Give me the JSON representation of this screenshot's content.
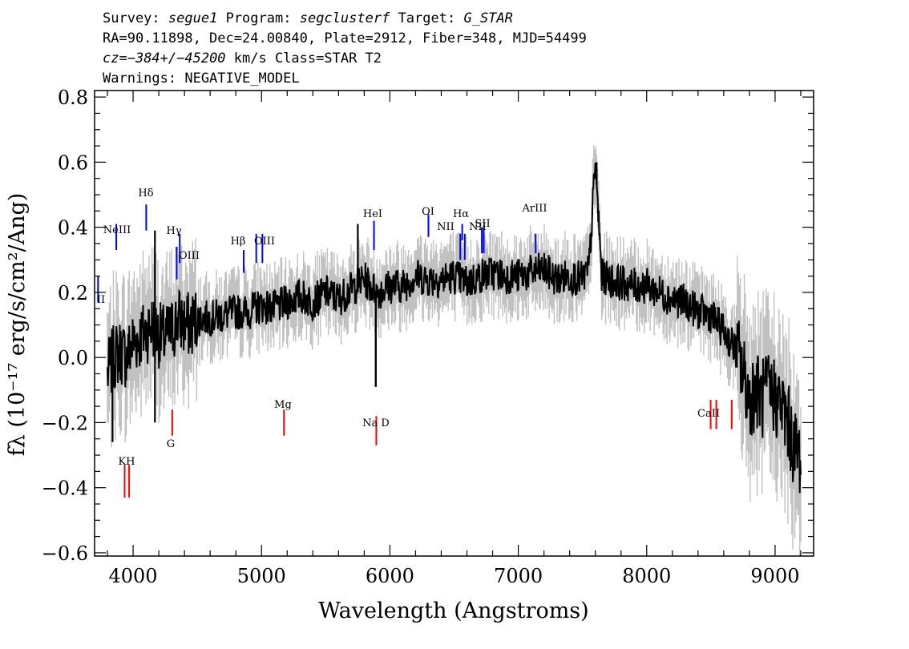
{
  "header": {
    "survey_label": "Survey:",
    "survey": "segue1",
    "program_label": "Program:",
    "program": "segclusterf",
    "target_label": "Target:",
    "target": "G_STAR",
    "line2": "RA=90.11898, Dec=24.00840, Plate=2912, Fiber=348, MJD=54499",
    "cz_label": "cz=",
    "cz_value": "−384+/−45200",
    "cz_units_class": " km/s Class=STAR T2",
    "warnings": "Warnings: NEGATIVE_MODEL"
  },
  "chart_data": {
    "type": "line",
    "xlabel": "Wavelength (Angstroms)",
    "ylabel": "fλ (10⁻¹⁷ erg/s/cm²/Ang)",
    "xlim": [
      3700,
      9300
    ],
    "ylim": [
      -0.61,
      0.82
    ],
    "x_ticks": [
      4000,
      5000,
      6000,
      7000,
      8000,
      9000
    ],
    "y_ticks": [
      -0.6,
      -0.4,
      -0.2,
      0.0,
      0.2,
      0.4,
      0.6,
      0.8
    ],
    "y_tick_labels": [
      "−0.6",
      "−0.4",
      "−0.2",
      "0.0",
      "0.2",
      "0.4",
      "0.6",
      "0.8"
    ],
    "colors": {
      "spectrum": "#000000",
      "errors": "#c0c0c0",
      "emission": "#0000ff",
      "absorption": "#ff0000"
    },
    "series": [
      {
        "role": "flux",
        "x": [
          3800,
          3850,
          3900,
          3950,
          4000,
          4050,
          4100,
          4150,
          4200,
          4250,
          4300,
          4350,
          4400,
          4450,
          4500,
          4600,
          4700,
          4800,
          4900,
          5000,
          5100,
          5200,
          5300,
          5400,
          5500,
          5600,
          5700,
          5800,
          5900,
          6000,
          6100,
          6200,
          6300,
          6400,
          6500,
          6600,
          6700,
          6800,
          6900,
          7000,
          7100,
          7200,
          7300,
          7400,
          7500,
          7550,
          7600,
          7650,
          7700,
          7800,
          7900,
          8000,
          8100,
          8200,
          8300,
          8400,
          8500,
          8600,
          8700,
          8750,
          8800,
          8850,
          8900,
          8950,
          9000,
          9050,
          9100,
          9150,
          9200
        ],
        "y": [
          -0.05,
          0.0,
          0.02,
          0.0,
          0.05,
          0.06,
          0.08,
          0.1,
          0.07,
          0.06,
          0.08,
          0.12,
          0.1,
          0.1,
          0.12,
          0.12,
          0.13,
          0.14,
          0.14,
          0.16,
          0.15,
          0.17,
          0.19,
          0.17,
          0.2,
          0.18,
          0.21,
          0.24,
          0.2,
          0.22,
          0.22,
          0.25,
          0.24,
          0.24,
          0.25,
          0.23,
          0.25,
          0.26,
          0.25,
          0.25,
          0.26,
          0.27,
          0.24,
          0.25,
          0.24,
          0.27,
          0.6,
          0.25,
          0.24,
          0.23,
          0.22,
          0.22,
          0.2,
          0.18,
          0.17,
          0.14,
          0.13,
          0.08,
          0.02,
          -0.05,
          -0.12,
          -0.1,
          -0.13,
          -0.1,
          -0.12,
          -0.15,
          -0.2,
          -0.28,
          -0.3
        ]
      },
      {
        "role": "spikes",
        "x": [
          3840,
          4170,
          4170,
          5750,
          5890,
          5890,
          7610
        ],
        "y": [
          -0.26,
          0.39,
          -0.2,
          0.41,
          -0.09,
          -0.09,
          0.6
        ]
      }
    ],
    "lines": [
      {
        "name": "NeIII",
        "wavelength": 3869,
        "kind": "emission"
      },
      {
        "name": "Hδ",
        "wavelength": 4102,
        "kind": "emission"
      },
      {
        "name": "Hγ",
        "wavelength": 4340,
        "kind": "emission"
      },
      {
        "name": "OIII",
        "wavelength": 4363,
        "kind": "emission"
      },
      {
        "name": "Hβ",
        "wavelength": 4861,
        "kind": "emission"
      },
      {
        "name": "OIII",
        "wavelength": 4959,
        "kind": "emission"
      },
      {
        "name": "OIII",
        "wavelength": 5007,
        "kind": "emission"
      },
      {
        "name": "HeI",
        "wavelength": 5876,
        "kind": "emission"
      },
      {
        "name": "OI",
        "wavelength": 6300,
        "kind": "emission"
      },
      {
        "name": "NII",
        "wavelength": 6548,
        "kind": "emission"
      },
      {
        "name": "Hα",
        "wavelength": 6563,
        "kind": "emission"
      },
      {
        "name": "NII",
        "wavelength": 6583,
        "kind": "emission"
      },
      {
        "name": "SII",
        "wavelength": 6716,
        "kind": "emission"
      },
      {
        "name": "SII",
        "wavelength": 6731,
        "kind": "emission"
      },
      {
        "name": "ArIII",
        "wavelength": 7135,
        "kind": "emission"
      },
      {
        "name": "II",
        "wavelength": 3727,
        "kind": "emission"
      },
      {
        "name": "K",
        "wavelength": 3934,
        "kind": "absorption"
      },
      {
        "name": "H",
        "wavelength": 3969,
        "kind": "absorption"
      },
      {
        "name": "G",
        "wavelength": 4305,
        "kind": "absorption"
      },
      {
        "name": "Mg",
        "wavelength": 5175,
        "kind": "absorption"
      },
      {
        "name": "Na D",
        "wavelength": 5894,
        "kind": "absorption"
      },
      {
        "name": "CaII",
        "wavelength": 8498,
        "kind": "absorption"
      },
      {
        "name": "CaII",
        "wavelength": 8542,
        "kind": "absorption"
      },
      {
        "name": "CaII",
        "wavelength": 8662,
        "kind": "absorption"
      }
    ],
    "line_labels": [
      {
        "text": "NeIII",
        "kind": "emission"
      },
      {
        "text": "Hδ",
        "kind": "emission"
      },
      {
        "text": "Hγ",
        "kind": "emission"
      },
      {
        "text": "OIII",
        "kind": "emission"
      },
      {
        "text": "Hβ",
        "kind": "emission"
      },
      {
        "text": "OIII",
        "kind": "emission"
      },
      {
        "text": "HeI",
        "kind": "emission"
      },
      {
        "text": "OI",
        "kind": "emission"
      },
      {
        "text": "NII",
        "kind": "emission"
      },
      {
        "text": "Hα",
        "kind": "emission"
      },
      {
        "text": "NII",
        "kind": "emission"
      },
      {
        "text": "SII",
        "kind": "emission"
      },
      {
        "text": "ArIII",
        "kind": "emission"
      },
      {
        "text": "II",
        "kind": "emission"
      },
      {
        "text": "KH",
        "kind": "absorption"
      },
      {
        "text": "G",
        "kind": "absorption"
      },
      {
        "text": "Mg",
        "kind": "absorption"
      },
      {
        "text": "Na D",
        "kind": "absorption"
      },
      {
        "text": "CaII",
        "kind": "absorption"
      }
    ]
  }
}
